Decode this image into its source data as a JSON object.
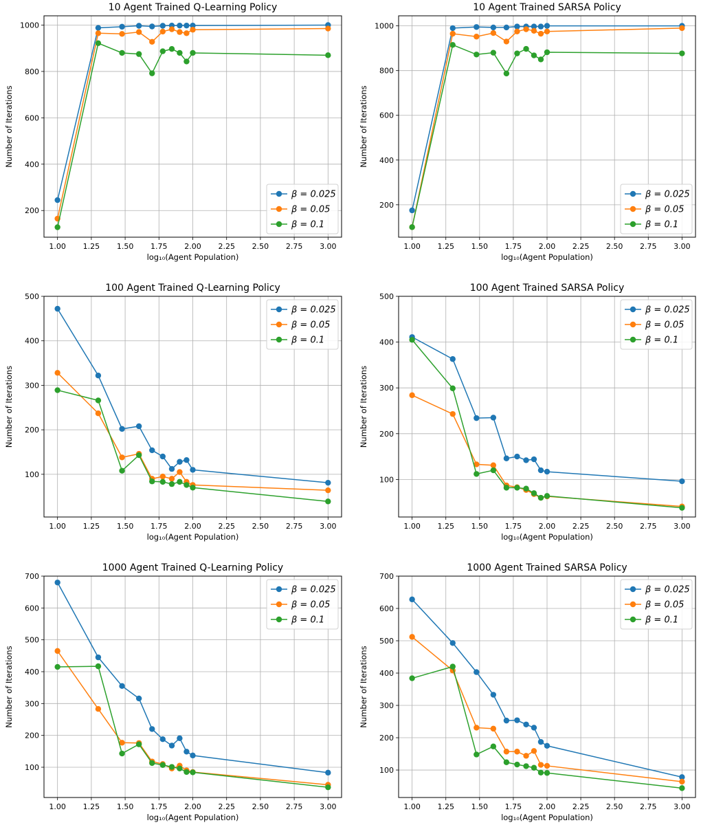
{
  "colors": {
    "series": [
      "#1f77b4",
      "#ff7f0e",
      "#2ca02c"
    ],
    "grid": "#b0b0b0"
  },
  "chart_data": [
    {
      "type": "line",
      "title": "10 Agent Trained Q-Learning Policy",
      "xlabel": "log₁₀(Agent Population)",
      "ylabel": "Number of Iterations",
      "x": [
        1.0,
        1.301,
        1.477,
        1.602,
        1.699,
        1.778,
        1.845,
        1.903,
        1.954,
        2.0,
        3.0
      ],
      "xlim": [
        0.9,
        3.1
      ],
      "ylim": [
        85,
        1040
      ],
      "xticks": [
        "1.00",
        "1.25",
        "1.50",
        "1.75",
        "2.00",
        "2.25",
        "2.50",
        "2.75",
        "3.00"
      ],
      "yticks": [
        200,
        400,
        600,
        800,
        1000
      ],
      "grid": true,
      "legend": "lower-right",
      "series": [
        {
          "name": "β = 0.025",
          "values": [
            245,
            988,
            993,
            997,
            994,
            997,
            998,
            998,
            998,
            998,
            1000
          ]
        },
        {
          "name": "β = 0.05",
          "values": [
            165,
            965,
            962,
            970,
            928,
            972,
            982,
            970,
            965,
            980,
            985
          ]
        },
        {
          "name": "β = 0.1",
          "values": [
            128,
            922,
            880,
            875,
            792,
            887,
            897,
            880,
            843,
            880,
            870
          ]
        }
      ]
    },
    {
      "type": "line",
      "title": "10 Agent Trained SARSA Policy",
      "xlabel": "log₁₀(Agent Population)",
      "ylabel": "Number of Iterations",
      "x": [
        1.0,
        1.301,
        1.477,
        1.602,
        1.699,
        1.778,
        1.845,
        1.903,
        1.954,
        2.0,
        3.0
      ],
      "xlim": [
        0.9,
        3.1
      ],
      "ylim": [
        55,
        1045
      ],
      "xticks": [
        "1.00",
        "1.25",
        "1.50",
        "1.75",
        "2.00",
        "2.25",
        "2.50",
        "2.75",
        "3.00"
      ],
      "yticks": [
        200,
        400,
        600,
        800,
        1000
      ],
      "grid": true,
      "legend": "lower-right",
      "series": [
        {
          "name": "β = 0.025",
          "values": [
            175,
            990,
            995,
            993,
            993,
            997,
            997,
            997,
            997,
            1000,
            1000
          ]
        },
        {
          "name": "β = 0.05",
          "values": [
            100,
            965,
            952,
            968,
            930,
            975,
            985,
            978,
            965,
            975,
            990
          ]
        },
        {
          "name": "β = 0.1",
          "values": [
            100,
            915,
            872,
            880,
            787,
            877,
            897,
            868,
            850,
            882,
            877
          ]
        }
      ]
    },
    {
      "type": "line",
      "title": "100 Agent Trained Q-Learning Policy",
      "xlabel": "log₁₀(Agent Population)",
      "ylabel": "Number of Iterations",
      "x": [
        1.0,
        1.301,
        1.477,
        1.602,
        1.699,
        1.778,
        1.845,
        1.903,
        1.954,
        2.0,
        3.0
      ],
      "xlim": [
        0.9,
        3.1
      ],
      "ylim": [
        4,
        500
      ],
      "xticks": [
        "1.00",
        "1.25",
        "1.50",
        "1.75",
        "2.00",
        "2.25",
        "2.50",
        "2.75",
        "3.00"
      ],
      "yticks": [
        100,
        200,
        300,
        400,
        500
      ],
      "grid": true,
      "legend": "upper-right",
      "series": [
        {
          "name": "β = 0.025",
          "values": [
            472,
            322,
            202,
            208,
            154,
            140,
            112,
            128,
            132,
            110,
            81
          ]
        },
        {
          "name": "β = 0.05",
          "values": [
            328,
            237,
            138,
            146,
            90,
            95,
            90,
            105,
            83,
            76,
            64
          ]
        },
        {
          "name": "β = 0.1",
          "values": [
            289,
            266,
            108,
            143,
            84,
            83,
            78,
            83,
            76,
            70,
            39
          ]
        }
      ]
    },
    {
      "type": "line",
      "title": "100 Agent Trained SARSA Policy",
      "xlabel": "log₁₀(Agent Population)",
      "ylabel": "Number of Iterations",
      "x": [
        1.0,
        1.301,
        1.477,
        1.602,
        1.699,
        1.778,
        1.845,
        1.903,
        1.954,
        2.0,
        3.0
      ],
      "xlim": [
        0.9,
        3.1
      ],
      "ylim": [
        18,
        500
      ],
      "xticks": [
        "1.00",
        "1.25",
        "1.50",
        "1.75",
        "2.00",
        "2.25",
        "2.50",
        "2.75",
        "3.00"
      ],
      "yticks": [
        100,
        200,
        300,
        400,
        500
      ],
      "grid": true,
      "legend": "upper-right",
      "series": [
        {
          "name": "β = 0.025",
          "values": [
            411,
            363,
            234,
            235,
            146,
            150,
            142,
            144,
            120,
            117,
            96
          ]
        },
        {
          "name": "β = 0.05",
          "values": [
            284,
            243,
            133,
            131,
            87,
            83,
            77,
            68,
            60,
            63,
            41
          ]
        },
        {
          "name": "β = 0.1",
          "values": [
            405,
            299,
            112,
            120,
            82,
            82,
            80,
            70,
            60,
            64,
            38
          ]
        }
      ]
    },
    {
      "type": "line",
      "title": "1000 Agent Trained Q-Learning Policy",
      "xlabel": "log₁₀(Agent Population)",
      "ylabel": "Number of Iterations",
      "x": [
        1.0,
        1.301,
        1.477,
        1.602,
        1.699,
        1.778,
        1.845,
        1.903,
        1.954,
        2.0,
        3.0
      ],
      "xlim": [
        0.9,
        3.1
      ],
      "ylim": [
        5,
        700
      ],
      "xticks": [
        "1.00",
        "1.25",
        "1.50",
        "1.75",
        "2.00",
        "2.25",
        "2.50",
        "2.75",
        "3.00"
      ],
      "yticks": [
        100,
        200,
        300,
        400,
        500,
        600,
        700
      ],
      "grid": true,
      "legend": "upper-right",
      "series": [
        {
          "name": "β = 0.025",
          "values": [
            680,
            445,
            355,
            316,
            220,
            188,
            168,
            191,
            149,
            137,
            83
          ]
        },
        {
          "name": "β = 0.05",
          "values": [
            465,
            283,
            177,
            176,
            118,
            110,
            96,
            105,
            90,
            85,
            45
          ]
        },
        {
          "name": "β = 0.1",
          "values": [
            415,
            417,
            143,
            172,
            113,
            107,
            101,
            96,
            85,
            84,
            37
          ]
        }
      ]
    },
    {
      "type": "line",
      "title": "1000 Agent Trained SARSA Policy",
      "xlabel": "log₁₀(Agent Population)",
      "ylabel": "Number of Iterations",
      "x": [
        1.0,
        1.301,
        1.477,
        1.602,
        1.699,
        1.778,
        1.845,
        1.903,
        1.954,
        2.0,
        3.0
      ],
      "xlim": [
        0.9,
        3.1
      ],
      "ylim": [
        15,
        700
      ],
      "xticks": [
        "1.00",
        "1.25",
        "1.50",
        "1.75",
        "2.00",
        "2.25",
        "2.50",
        "2.75",
        "3.00"
      ],
      "yticks": [
        100,
        200,
        300,
        400,
        500,
        600,
        700
      ],
      "grid": true,
      "legend": "upper-right",
      "series": [
        {
          "name": "β = 0.025",
          "values": [
            628,
            493,
            403,
            333,
            253,
            254,
            241,
            231,
            187,
            175,
            78
          ]
        },
        {
          "name": "β = 0.05",
          "values": [
            512,
            408,
            231,
            228,
            157,
            157,
            144,
            159,
            116,
            113,
            64
          ]
        },
        {
          "name": "β = 0.1",
          "values": [
            384,
            420,
            148,
            173,
            124,
            117,
            112,
            107,
            92,
            91,
            44
          ]
        }
      ]
    }
  ]
}
